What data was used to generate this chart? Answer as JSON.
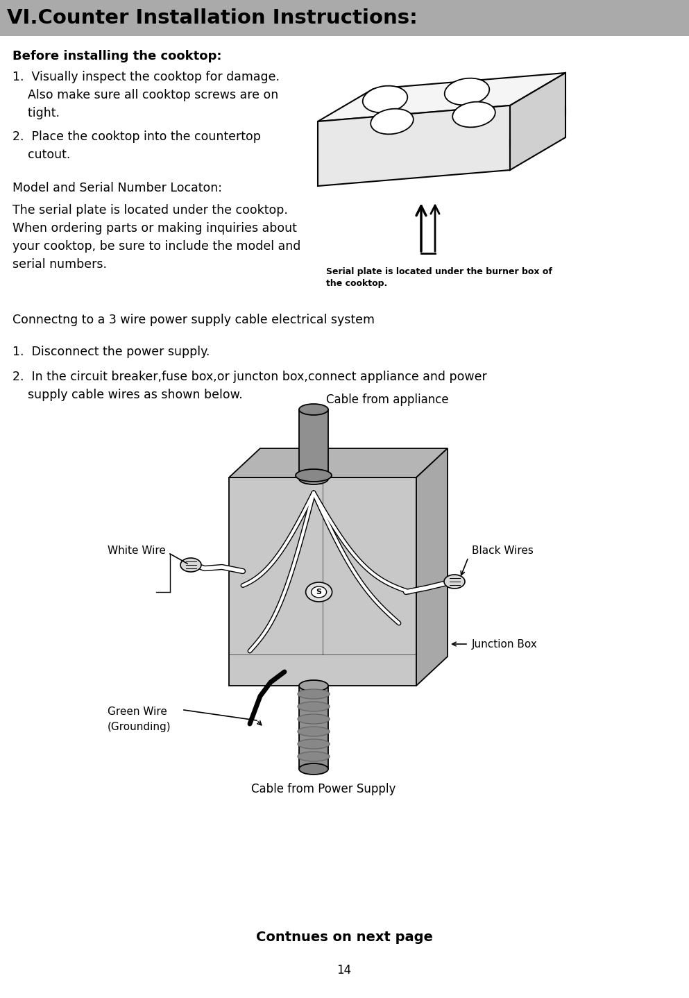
{
  "title": "VI.Counter Installation Instructions:",
  "title_bg": "#aaaaaa",
  "bg_color": "#ffffff",
  "section1_header": "Before installing the cooktop:",
  "step1_lines": [
    "1.  Visually inspect the cooktop for damage.",
    "    Also make sure all cooktop screws are on",
    "    tight."
  ],
  "step2_lines": [
    "2.  Place the cooktop into the countertop",
    "    cutout."
  ],
  "model_header": "Model and Serial Number Locaton:",
  "model_lines": [
    "The serial plate is located under the cooktop.",
    "When ordering parts or making inquiries about",
    "your cooktop, be sure to include the model and",
    "serial numbers."
  ],
  "serial_cap1": "Serial plate is located under the burner box of",
  "serial_cap2": "the cooktop.",
  "section2_header": "Connectng to a 3 wire power supply cable electrical system",
  "elec_step1": "1.  Disconnect the power supply.",
  "elec_step2a": "2.  In the circuit breaker,fuse box,or juncton box,connect appliance and power",
  "elec_step2b": "    supply cable wires as shown below.",
  "label_cable_appliance": "Cable from appliance",
  "label_white_wire": "White Wire",
  "label_black_wires": "Black Wires",
  "label_junction_box": "Junction Box",
  "label_green_wire1": "Green Wire",
  "label_green_wire2": "(Grounding)",
  "label_cable_power": "Cable from Power Supply",
  "footer": "Contnues on next page",
  "page_num": "14"
}
